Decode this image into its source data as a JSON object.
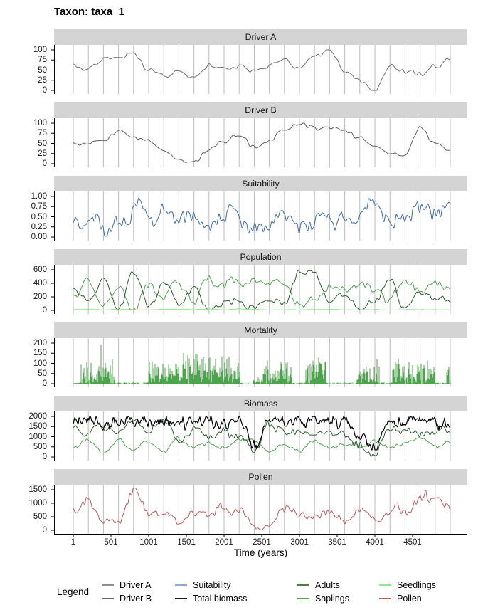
{
  "chart_data": {
    "type": "line",
    "title": "Taxon: taxa_1",
    "xlabel": "Time (years)",
    "x": {
      "min": 1,
      "max": 5000,
      "ticks": [
        1,
        501,
        1001,
        1501,
        2001,
        2501,
        3001,
        3501,
        4001,
        4501
      ]
    },
    "event_lines": {
      "start_year": 1,
      "interval_years": 200,
      "count": 26,
      "color": "#bdbdbd"
    },
    "strip_bg": "#d4d4d4",
    "panels": [
      {
        "name": "Driver A",
        "ymax": 100,
        "yticks": [
          "100",
          "75",
          "50",
          "25",
          "0"
        ],
        "ytick_values": [
          100,
          75,
          50,
          25,
          0
        ],
        "series": [
          {
            "name": "Driver A",
            "color": "#6e6e6e",
            "kind": "line",
            "width": 1,
            "ctrl": [
              70,
              55,
              80,
              85,
              90,
              45,
              28,
              45,
              35,
              60,
              55,
              68,
              52,
              60,
              72,
              45,
              80,
              98,
              45,
              30,
              5,
              70,
              45,
              35,
              60,
              85
            ],
            "slow": [
              380,
              9
            ],
            "fast": [
              45,
              6
            ],
            "clamp": [
              0,
              100
            ]
          }
        ]
      },
      {
        "name": "Driver B",
        "ymax": 100,
        "yticks": [
          "100",
          "75",
          "50",
          "25",
          "0"
        ],
        "ytick_values": [
          100,
          75,
          50,
          25,
          0
        ],
        "series": [
          {
            "name": "Driver B",
            "color": "#5e5e5e",
            "kind": "line",
            "width": 1,
            "ctrl": [
              45,
              55,
              62,
              88,
              70,
              65,
              40,
              15,
              10,
              35,
              55,
              72,
              40,
              55,
              80,
              92,
              85,
              90,
              80,
              60,
              40,
              25,
              15,
              90,
              50,
              42
            ],
            "slow": [
              380,
              8
            ],
            "fast": [
              45,
              5
            ],
            "clamp": [
              0,
              100
            ]
          }
        ]
      },
      {
        "name": "Suitability",
        "ymax": 1,
        "yticks": [
          "1.00",
          "0.75",
          "0.50",
          "0.25",
          "0.00"
        ],
        "ytick_values": [
          1,
          0.75,
          0.5,
          0.25,
          0
        ],
        "series": [
          {
            "name": "Suitability",
            "color": "#3c6ab0",
            "kind": "line",
            "width": 1,
            "ctrl": [
              0.75,
              0.45,
              0.35,
              0.55,
              0.75,
              0.45,
              0.6,
              0.35,
              0.6,
              0.5,
              0.65,
              0.6,
              0.08,
              0.1,
              0.35,
              0.45,
              0.4,
              0.5,
              0.35,
              0.55,
              0.65,
              0.35,
              0.5,
              0.75,
              0.6,
              0.5
            ],
            "slow": [
              150,
              0.28
            ],
            "fast": [
              28,
              0.17
            ],
            "clamp": [
              0.02,
              1
            ]
          }
        ]
      },
      {
        "name": "Population",
        "ymax": 600,
        "yticks": [
          "600",
          "400",
          "200",
          "0"
        ],
        "ytick_values": [
          600,
          400,
          200,
          0
        ],
        "series": [
          {
            "name": "Saplings",
            "color": "#4ea44e",
            "kind": "line",
            "width": 1,
            "ctrl": [
              150,
              420,
              100,
              400,
              60,
              380,
              150,
              420,
              200,
              400,
              350,
              420,
              400,
              380,
              420,
              60,
              100,
              400,
              300,
              420,
              350,
              150,
              420,
              300,
              400,
              250
            ],
            "slow": [
              160,
              80
            ],
            "fast": [
              30,
              55
            ],
            "clamp": [
              5,
              520
            ]
          },
          {
            "name": "Adults",
            "color": "#2a5c2a",
            "kind": "line",
            "width": 1,
            "ctrl": [
              350,
              100,
              550,
              80,
              600,
              120,
              450,
              80,
              350,
              60,
              120,
              80,
              60,
              100,
              80,
              580,
              560,
              120,
              250,
              80,
              160,
              520,
              80,
              250,
              100,
              200
            ],
            "slow": [
              180,
              70
            ],
            "fast": [
              35,
              45
            ],
            "clamp": [
              5,
              615
            ]
          },
          {
            "name": "Seedlings",
            "color": "#90e890",
            "kind": "line",
            "width": 1,
            "ctrl": [
              12,
              15,
              10,
              14,
              12,
              10,
              15,
              12,
              10,
              14,
              12,
              15,
              10,
              12,
              14,
              10,
              12,
              15,
              12,
              10,
              14,
              12,
              10,
              15,
              12,
              10
            ],
            "slow": [
              200,
              6
            ],
            "fast": [
              40,
              4
            ],
            "clamp": [
              1,
              40
            ]
          }
        ]
      },
      {
        "name": "Mortality",
        "ymax": 200,
        "yticks": [
          "200",
          "150",
          "100",
          "50",
          "0"
        ],
        "ytick_values": [
          200,
          150,
          100,
          50,
          0
        ],
        "series": [
          {
            "name": "Mortality",
            "kind": "spikes",
            "color": "#4ea44e",
            "dark_color": "#2a5c2a",
            "env_ctrl": [
              65,
              70,
              60,
              75,
              85,
              70,
              65,
              80,
              90,
              70,
              75,
              65,
              10,
              70,
              60,
              75,
              70,
              65,
              70,
              60,
              65,
              75,
              70,
              65,
              70,
              60
            ]
          }
        ]
      },
      {
        "name": "Biomass",
        "ymax": 2000,
        "yticks": [
          "2000",
          "1500",
          "1000",
          "500",
          "0"
        ],
        "ytick_values": [
          2000,
          1500,
          1000,
          500,
          0
        ],
        "series": [
          {
            "name": "Saplings",
            "color": "#4ea44e",
            "kind": "line",
            "width": 1,
            "ctrl": [
              400,
              800,
              250,
              900,
              200,
              700,
              350,
              850,
              500,
              750,
              600,
              850,
              700,
              200,
              500,
              350,
              800,
              550,
              700,
              450,
              800,
              350,
              600,
              800,
              450,
              650
            ],
            "slow": [
              150,
              160
            ],
            "fast": [
              30,
              90
            ],
            "clamp": [
              40,
              1600
            ]
          },
          {
            "name": "Adults",
            "color": "#2a5c2a",
            "kind": "line",
            "width": 1,
            "ctrl": [
              1500,
              1050,
              1650,
              950,
              1700,
              1150,
              1550,
              1000,
              1400,
              1100,
              1300,
              1000,
              100,
              1650,
              1400,
              1500,
              1100,
              1300,
              1200,
              750,
              50,
              1500,
              1300,
              1050,
              1450,
              1200
            ],
            "slow": [
              140,
              260
            ],
            "fast": [
              28,
              180
            ],
            "clamp": [
              30,
              1970
            ]
          },
          {
            "name": "Total biomass",
            "color": "#000000",
            "kind": "line",
            "width": 1.2,
            "down": true,
            "ctrl": [
              2050,
              2050,
              2050,
              2050,
              2050,
              2050,
              2050,
              2050,
              2050,
              2050,
              2050,
              2050,
              900,
              2050,
              2050,
              2050,
              2050,
              2050,
              2050,
              1300,
              750,
              2050,
              2050,
              2050,
              2050,
              2050
            ],
            "slow": [
              55,
              520
            ],
            "fast": [
              13,
              260
            ],
            "clamp": [
              350,
              1995
            ]
          }
        ]
      },
      {
        "name": "Pollen",
        "ymax": 1500,
        "yticks": [
          "1500",
          "1000",
          "500",
          "0"
        ],
        "ytick_values": [
          1500,
          1000,
          500,
          0
        ],
        "series": [
          {
            "name": "Pollen",
            "color": "#c25858",
            "kind": "line",
            "width": 1,
            "rel": true,
            "ctrl": [
              700,
              1200,
              300,
              200,
              1250,
              600,
              1000,
              350,
              800,
              600,
              900,
              800,
              150,
              120,
              600,
              700,
              550,
              650,
              450,
              700,
              500,
              900,
              700,
              1400,
              900,
              700
            ],
            "slow": [
              130,
              320
            ],
            "fast": [
              25,
              190
            ],
            "clamp": [
              15,
              1560
            ]
          }
        ]
      }
    ],
    "legend": {
      "title": "Legend",
      "entries": [
        {
          "label": "Driver A",
          "color": "#8f8f8f"
        },
        {
          "label": "Driver B",
          "color": "#666666"
        },
        {
          "label": "Suitability",
          "color": "#8fa9d6"
        },
        {
          "label": "Total biomass",
          "color": "#1a1a1a"
        },
        {
          "label": "Adults",
          "color": "#55784f"
        },
        {
          "label": "Saplings",
          "color": "#4ea44e"
        },
        {
          "label": "Seedlings",
          "color": "#90e890"
        },
        {
          "label": "Pollen",
          "color": "#c25858"
        }
      ]
    }
  }
}
